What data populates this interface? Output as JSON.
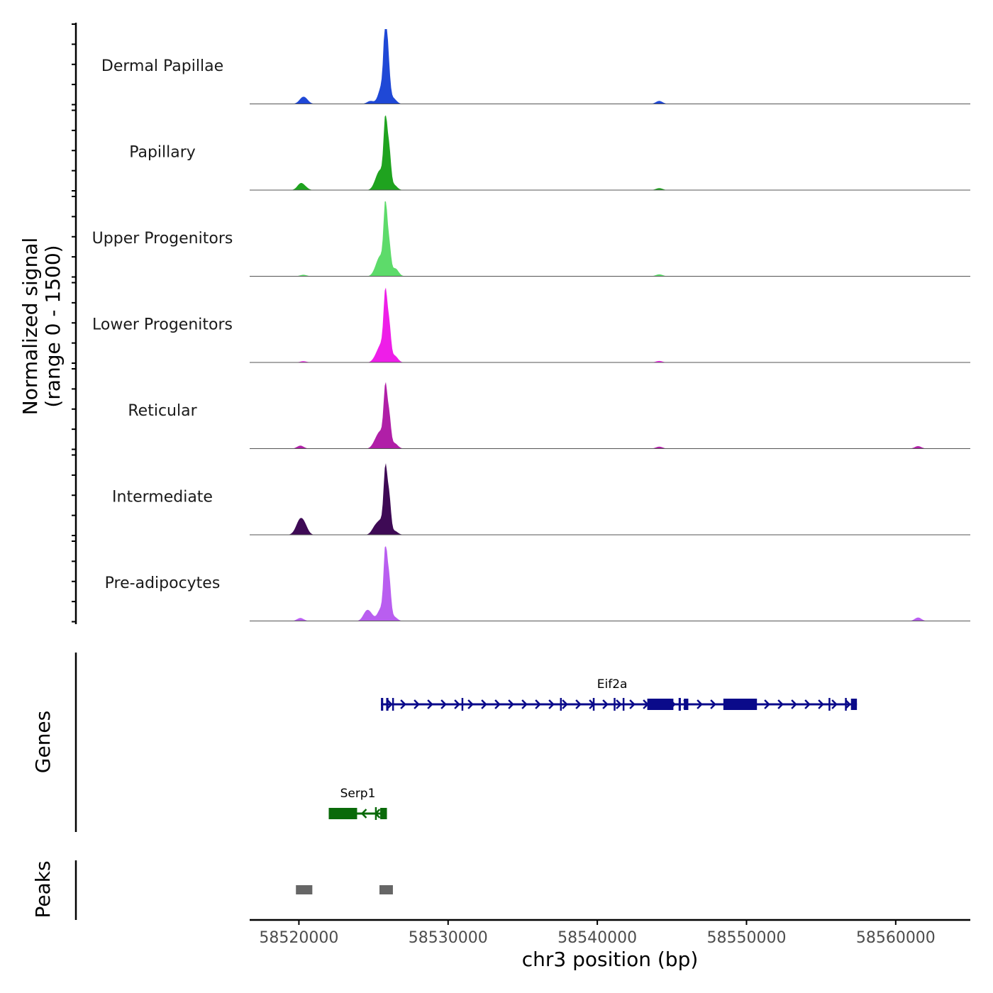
{
  "chart_data": {
    "type": "coverage",
    "ylabel_line1": "Normalized signal",
    "ylabel_line2": "(range 0 - 1500)",
    "y_range": [
      0,
      1500
    ],
    "xlabel": "chr3 position (bp)",
    "xlim": [
      58516700,
      58565000
    ],
    "x_ticks": [
      58520000,
      58530000,
      58540000,
      58550000,
      58560000
    ],
    "x_tick_labels": [
      "58520000",
      "58530000",
      "58540000",
      "58550000",
      "58560000"
    ],
    "genes_label": "Genes",
    "peaks_label": "Peaks",
    "tracks": [
      {
        "name": "Dermal Papillae",
        "color": "#1f48d6",
        "peaks": [
          [
            58520200,
            90
          ],
          [
            58520450,
            80
          ],
          [
            58525800,
            1500
          ],
          [
            58525550,
            350
          ],
          [
            58526000,
            650
          ],
          [
            58524800,
            60
          ],
          [
            58526300,
            120
          ],
          [
            58544150,
            60
          ]
        ]
      },
      {
        "name": "Papillary",
        "color": "#1fa31f",
        "peaks": [
          [
            58520100,
            120
          ],
          [
            58520400,
            50
          ],
          [
            58525800,
            1350
          ],
          [
            58525500,
            320
          ],
          [
            58526050,
            750
          ],
          [
            58525200,
            160
          ],
          [
            58526350,
            110
          ],
          [
            58544150,
            40
          ]
        ]
      },
      {
        "name": "Upper Progenitors",
        "color": "#5ddb6a",
        "peaks": [
          [
            58520300,
            30
          ],
          [
            58525800,
            1380
          ],
          [
            58525500,
            340
          ],
          [
            58526050,
            600
          ],
          [
            58525200,
            140
          ],
          [
            58526450,
            160
          ],
          [
            58544150,
            40
          ]
        ]
      },
      {
        "name": "Lower Progenitors",
        "color": "#ee1ee8",
        "peaks": [
          [
            58520300,
            25
          ],
          [
            58525800,
            1270
          ],
          [
            58525550,
            330
          ],
          [
            58526050,
            700
          ],
          [
            58525200,
            120
          ],
          [
            58526400,
            140
          ],
          [
            58544150,
            30
          ]
        ]
      },
      {
        "name": "Reticular",
        "color": "#b01fa7",
        "peaks": [
          [
            58520100,
            60
          ],
          [
            58525800,
            1150
          ],
          [
            58525500,
            300
          ],
          [
            58526050,
            620
          ],
          [
            58525150,
            140
          ],
          [
            58526400,
            110
          ],
          [
            58544150,
            40
          ],
          [
            58561500,
            50
          ]
        ]
      },
      {
        "name": "Intermediate",
        "color": "#3e0a55",
        "peaks": [
          [
            58520100,
            230
          ],
          [
            58520400,
            160
          ],
          [
            58519850,
            80
          ],
          [
            58525800,
            1250
          ],
          [
            58525500,
            260
          ],
          [
            58526050,
            720
          ],
          [
            58525100,
            150
          ],
          [
            58526400,
            80
          ]
        ]
      },
      {
        "name": "Pre-adipocytes",
        "color": "#b95ef0",
        "peaks": [
          [
            58520100,
            60
          ],
          [
            58524500,
            160
          ],
          [
            58524800,
            120
          ],
          [
            58525800,
            1400
          ],
          [
            58525500,
            250
          ],
          [
            58526050,
            780
          ],
          [
            58526350,
            90
          ],
          [
            58561500,
            70
          ]
        ]
      }
    ],
    "genes": [
      {
        "name": "Eif2a",
        "color": "#0a0a8a",
        "strand": "+",
        "start": 58525500,
        "end": 58557400,
        "exons": [
          [
            58525500,
            58525650
          ],
          [
            58525850,
            58526000
          ],
          [
            58526250,
            58526350
          ],
          [
            58530900,
            58531000
          ],
          [
            58537500,
            58537600
          ],
          [
            58539700,
            58539800
          ],
          [
            58541100,
            58541200
          ],
          [
            58541700,
            58541800
          ],
          [
            58543350,
            58545100
          ],
          [
            58545450,
            58545600
          ],
          [
            58545800,
            58546100
          ],
          [
            58548450,
            58550700
          ],
          [
            58555500,
            58555600
          ],
          [
            58556600,
            58556700
          ],
          [
            58557000,
            58557400
          ]
        ]
      },
      {
        "name": "Serp1",
        "color": "#0a6a0a",
        "strand": "-",
        "start": 58522000,
        "end": 58525900,
        "exons": [
          [
            58522000,
            58523900
          ],
          [
            58525100,
            58525200
          ],
          [
            58525450,
            58525900
          ]
        ]
      }
    ],
    "peaks_regions": [
      [
        58519800,
        58520900
      ],
      [
        58525400,
        58526300
      ]
    ]
  }
}
